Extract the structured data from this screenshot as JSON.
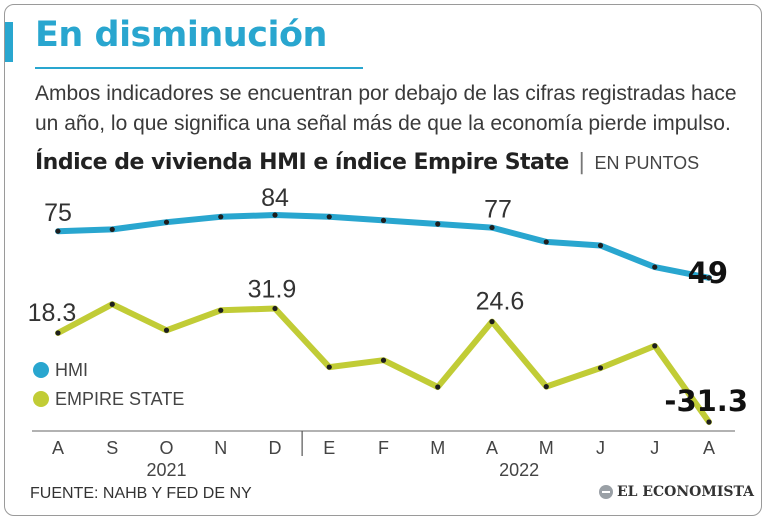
{
  "header": {
    "title": "En disminución",
    "subtitle": "Ambos indicadores se encuentran por debajo de las cifras registradas hace un año, lo que significa una señal más de que la economía pierde impulso.",
    "chart_title": "Índice de vivienda HMI e índice Empire State",
    "chart_title_separator": "|",
    "chart_unit": "EN PUNTOS"
  },
  "footer": {
    "source": "FUENTE: NAHB Y FED DE NY",
    "logo": "EL ECONOMISTA"
  },
  "colors": {
    "hmi": "#29a6cf",
    "empire": "#c1cc36",
    "accent": "#29a6cf",
    "axis": "#555555"
  },
  "chart_data": {
    "type": "line",
    "title": "Índice de vivienda HMI e índice Empire State",
    "ylabel": "Puntos",
    "xlabel": "",
    "categories": [
      "A",
      "S",
      "O",
      "N",
      "D",
      "E",
      "F",
      "M",
      "A",
      "M",
      "J",
      "J",
      "A"
    ],
    "year_labels": [
      "2021",
      "2022"
    ],
    "year_groups": [
      [
        0,
        4
      ],
      [
        5,
        12
      ]
    ],
    "ylim": [
      -35,
      90
    ],
    "grid": false,
    "legend_position": "left",
    "series": [
      {
        "name": "HMI",
        "color": "#29a6cf",
        "values": [
          75,
          76,
          80,
          83,
          84,
          83,
          81,
          79,
          77,
          69,
          67,
          55,
          49
        ],
        "labels": [
          {
            "index": 0,
            "text": "75",
            "bold": false
          },
          {
            "index": 4,
            "text": "84",
            "bold": false
          },
          {
            "index": 8,
            "text": "77",
            "bold": false
          },
          {
            "index": 12,
            "text": "49",
            "bold": true
          }
        ]
      },
      {
        "name": "EMPIRE STATE",
        "color": "#c1cc36",
        "values": [
          18.3,
          34.3,
          19.8,
          30.9,
          31.9,
          -0.7,
          3.1,
          -11.8,
          24.6,
          -11.6,
          -1.2,
          11.1,
          -31.3
        ],
        "labels": [
          {
            "index": 0,
            "text": "18.3",
            "bold": false
          },
          {
            "index": 4,
            "text": "31.9",
            "bold": false
          },
          {
            "index": 8,
            "text": "24.6",
            "bold": false
          },
          {
            "index": 12,
            "text": "-31.3",
            "bold": true
          }
        ]
      }
    ]
  }
}
